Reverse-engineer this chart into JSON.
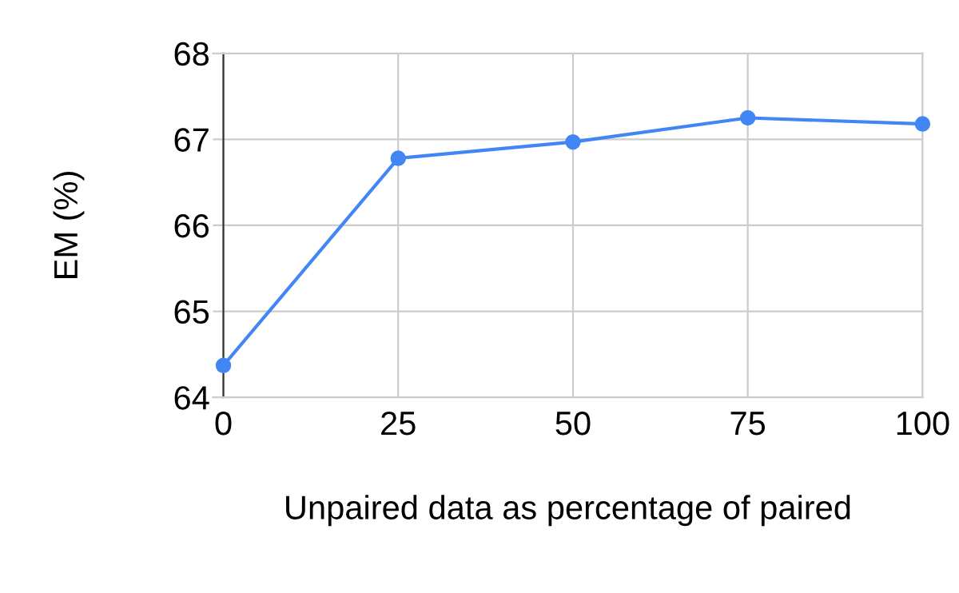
{
  "chart_data": {
    "type": "line",
    "xlabel": "Unpaired data as percentage of paired",
    "ylabel": "EM (%)",
    "x": [
      0,
      25,
      50,
      75,
      100
    ],
    "series": [
      {
        "color": "#4285f4",
        "values": [
          64.37,
          66.78,
          66.97,
          67.25,
          67.18
        ]
      }
    ],
    "xlim": [
      -1.5,
      100
    ],
    "xticks": [
      0,
      25,
      50,
      75,
      100
    ],
    "ylim": [
      64,
      68
    ],
    "yticks": [
      64,
      65,
      66,
      67,
      68
    ],
    "grid": true,
    "marker": "circle",
    "line_style": "solid"
  }
}
